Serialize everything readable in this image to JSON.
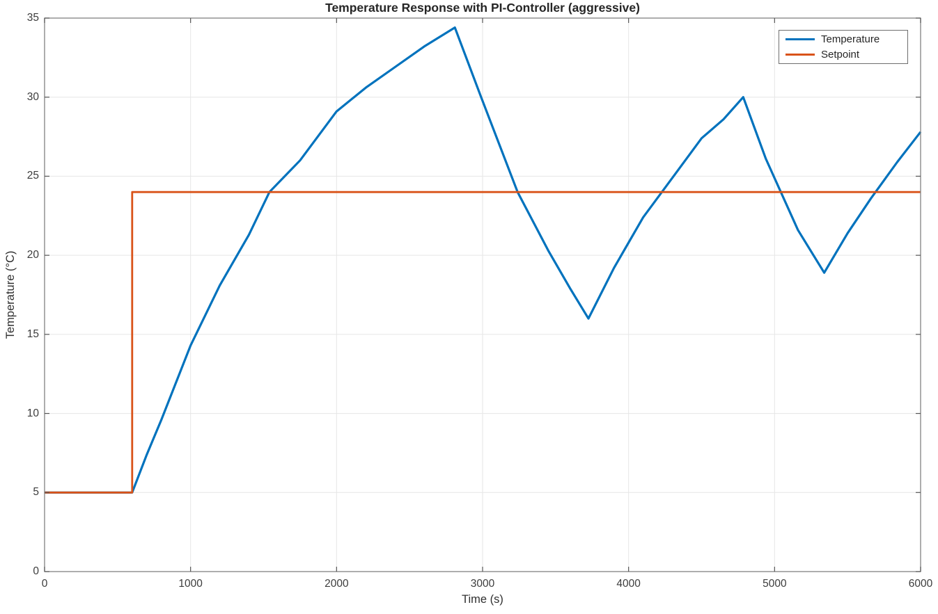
{
  "chart_data": {
    "type": "line",
    "title": "Temperature Response with PI-Controller (aggressive)",
    "xlabel": "Time (s)",
    "ylabel": "Temperature (°C)",
    "xlim": [
      0,
      6000
    ],
    "ylim": [
      0,
      35
    ],
    "xticks": [
      0,
      1000,
      2000,
      3000,
      4000,
      5000,
      6000
    ],
    "yticks": [
      0,
      5,
      10,
      15,
      20,
      25,
      30,
      35
    ],
    "grid": true,
    "legend_position": "top-right",
    "series": [
      {
        "name": "Temperature",
        "color": "#0072BD",
        "line_width": 3.2,
        "points": [
          [
            0,
            5
          ],
          [
            600,
            5
          ],
          [
            700,
            7.4
          ],
          [
            800,
            9.6
          ],
          [
            1000,
            14.3
          ],
          [
            1200,
            18.1
          ],
          [
            1400,
            21.3
          ],
          [
            1540,
            24.0
          ],
          [
            1750,
            26.0
          ],
          [
            2000,
            29.1
          ],
          [
            2200,
            30.6
          ],
          [
            2400,
            31.9
          ],
          [
            2600,
            33.2
          ],
          [
            2810,
            34.4
          ],
          [
            2990,
            30.0
          ],
          [
            3240,
            24.0
          ],
          [
            3450,
            20.3
          ],
          [
            3600,
            17.9
          ],
          [
            3725,
            16.0
          ],
          [
            3900,
            19.2
          ],
          [
            4100,
            22.4
          ],
          [
            4300,
            24.9
          ],
          [
            4500,
            27.4
          ],
          [
            4650,
            28.6
          ],
          [
            4785,
            30.0
          ],
          [
            4940,
            26.1
          ],
          [
            5160,
            21.6
          ],
          [
            5340,
            18.9
          ],
          [
            5500,
            21.4
          ],
          [
            5660,
            23.6
          ],
          [
            5840,
            25.9
          ],
          [
            6000,
            27.8
          ]
        ]
      },
      {
        "name": "Setpoint",
        "color": "#D95319",
        "line_width": 2.8,
        "points": [
          [
            0,
            5
          ],
          [
            600,
            5
          ],
          [
            600,
            24
          ],
          [
            6000,
            24
          ]
        ]
      }
    ],
    "style": {
      "frame_color": "#818181",
      "grid_color": "#e6e6e6",
      "tick_color": "#555555",
      "text_color": "#3c3c3c"
    }
  }
}
